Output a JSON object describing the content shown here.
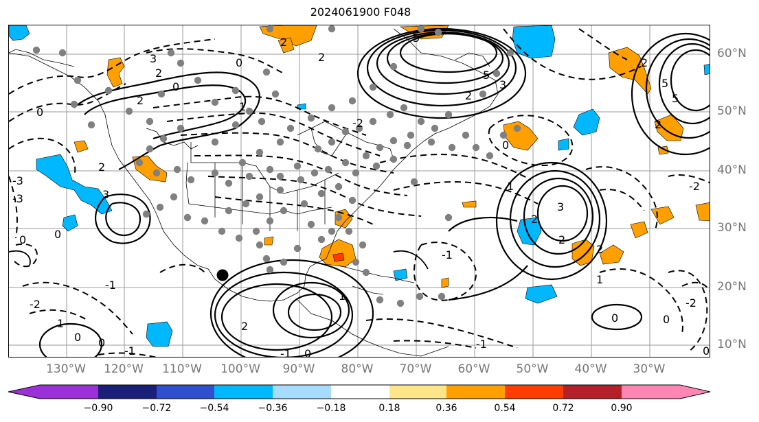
{
  "title": "2024061900 F048",
  "map": {
    "lon_labels": [
      "130°W",
      "120°W",
      "110°W",
      "100°W",
      "90°W",
      "80°W",
      "70°W",
      "60°W",
      "50°W",
      "40°W",
      "30°W"
    ],
    "lat_labels": [
      "60°N",
      "50°N",
      "40°N",
      "30°N",
      "20°N",
      "10°N"
    ],
    "contour_labels": [
      "0",
      "1",
      "2",
      "3",
      "5",
      "-1",
      "-2",
      "-3"
    ],
    "grid_color": "#999999",
    "contour_color": "#000000"
  },
  "colorbar": {
    "ticks": [
      "−0.90",
      "−0.72",
      "−0.54",
      "−0.36",
      "−0.18",
      "0.18",
      "0.36",
      "0.54",
      "0.72",
      "0.90"
    ],
    "colors": [
      "#9b30d9",
      "#1a1f7a",
      "#2f4fcf",
      "#00b8ff",
      "#a8dcff",
      "#ffffff",
      "#fde68a",
      "#ff9f00",
      "#ff3d00",
      "#b3202a",
      "#ff85b3"
    ]
  }
}
